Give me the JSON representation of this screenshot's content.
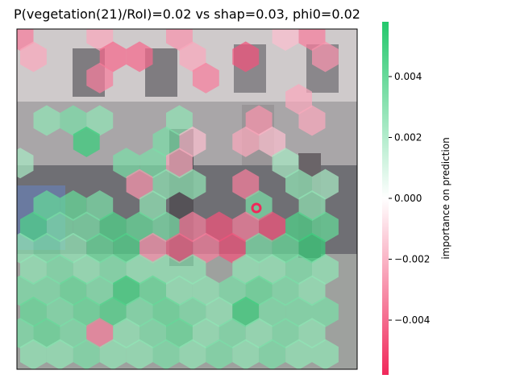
{
  "chart_data": {
    "type": "heatmap",
    "title": "P(vegetation(21)/RoI)=0.02 vs shap=0.03, phi0=0.02",
    "xlabel": "",
    "ylabel": "",
    "grid": false,
    "colorbar": {
      "label": "importance on prediction",
      "range": [
        -0.0058,
        0.0058
      ],
      "ticks": [
        -0.004,
        -0.002,
        0.0,
        0.002,
        0.004
      ],
      "tick_labels": [
        "−0.004",
        "−0.002",
        "0.000",
        "0.002",
        "0.004"
      ],
      "colors": {
        "negative": "#f0285a",
        "zero": "#ffffff",
        "positive": "#23c86c"
      }
    },
    "hex_rows": [
      [
        -0.6,
        0,
        0,
        -0.4,
        0,
        0,
        -0.5,
        0,
        0,
        0,
        -0.3,
        -0.6
      ],
      [
        -0.4,
        0,
        0,
        -0.7,
        -0.7,
        0,
        -0.4,
        0,
        -0.8,
        0,
        0,
        -0.5
      ],
      [
        0,
        0,
        0,
        -0.6,
        0,
        0,
        0,
        -0.6,
        0,
        0,
        0,
        0
      ],
      [
        0,
        0,
        0,
        0,
        0,
        0,
        0,
        0,
        0,
        0,
        -0.4,
        0
      ],
      [
        0,
        0.5,
        0.6,
        0.5,
        0,
        0,
        0.5,
        0,
        0,
        -0.5,
        0,
        -0.4
      ],
      [
        0,
        0,
        0.9,
        0,
        0,
        0.6,
        -0.3,
        0,
        -0.4,
        -0.3,
        0,
        0
      ],
      [
        0.4,
        0,
        0,
        0,
        0.6,
        0.6,
        -0.4,
        0,
        0,
        0,
        0.4,
        0
      ],
      [
        0,
        0,
        0,
        0,
        -0.5,
        0.5,
        0.5,
        0,
        -0.6,
        0,
        0.5,
        0.4
      ],
      [
        0,
        0.7,
        0.7,
        0.6,
        0,
        0.5,
        0,
        0,
        0,
        0.6,
        0,
        0.5
      ],
      [
        0.8,
        0.6,
        0.6,
        0.8,
        0.7,
        0.6,
        -0.6,
        -0.8,
        -0.6,
        -0.8,
        0.8,
        0.7
      ],
      [
        0.5,
        0.6,
        0.5,
        0.7,
        0.8,
        -0.5,
        -0.7,
        -0.6,
        -0.8,
        0.6,
        0.7,
        0.9
      ],
      [
        0.5,
        0.6,
        0.5,
        0.6,
        0.5,
        0.5,
        0.5,
        0,
        0.5,
        0.5,
        0.6,
        0.5
      ],
      [
        0.6,
        0.6,
        0.7,
        0.6,
        0.9,
        0.7,
        0.5,
        0.5,
        0.6,
        0.7,
        0.6,
        0.5
      ],
      [
        0.7,
        0.6,
        0.7,
        0.8,
        0.6,
        0.7,
        0.6,
        0.5,
        0.9,
        0.6,
        0.6,
        0.6
      ],
      [
        0.6,
        0.7,
        0.6,
        -0.6,
        0.5,
        0.6,
        0.7,
        0.5,
        0.6,
        0.5,
        0.6,
        0.5
      ],
      [
        0.5,
        0.5,
        0.6,
        0.5,
        0.5,
        0.6,
        0.5,
        0.6,
        0.5,
        0.6,
        0.5,
        0.5
      ]
    ],
    "marker": {
      "shape": "ring",
      "color": "#f0285a"
    }
  }
}
